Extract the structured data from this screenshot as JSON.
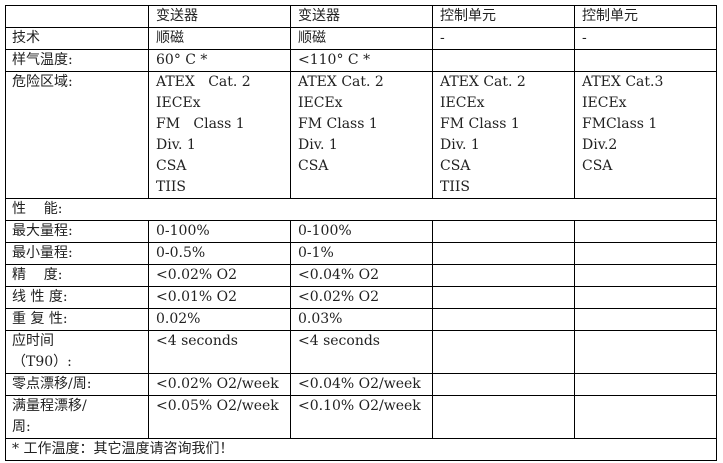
{
  "header": [
    "",
    "变送器",
    "变送器",
    "控制单元",
    "控制单元"
  ],
  "rows": [
    {
      "label": "技术",
      "cells": [
        "顺磁",
        "顺磁",
        "-",
        "-"
      ]
    },
    {
      "label": "样气温度:",
      "cells": [
        "60° C *",
        "<110° C *",
        "",
        ""
      ]
    },
    {
      "label": "危险区域:",
      "cells": [
        "ATEX   Cat. 2\nIECEx\nFM   Class 1\nDiv. 1\nCSA\nTIIS",
        "ATEX Cat. 2\nIECEx\nFM Class 1\nDiv. 1\nCSA",
        "ATEX Cat. 2\nIECEx\nFM Class 1\nDiv. 1\nCSA\nTIIS",
        "ATEX Cat.3\nIECEx\nFMClass 1\nDiv.2\nCSA"
      ]
    },
    {
      "section": "性    能:"
    },
    {
      "label": "最大量程:",
      "cells": [
        "0-100%",
        "0-100%",
        "",
        ""
      ]
    },
    {
      "label": "最小量程:",
      "cells": [
        "0-0.5%",
        "0-1%",
        "",
        ""
      ]
    },
    {
      "label": "精    度:",
      "cells": [
        "<0.02% O2",
        "<0.04% O2",
        "",
        ""
      ]
    },
    {
      "label": "线 性 度:",
      "cells": [
        "<0.01% O2",
        "<0.02% O2",
        "",
        ""
      ]
    },
    {
      "label": "重 复 性:",
      "cells": [
        "0.02%",
        "0.03%",
        "",
        ""
      ]
    },
    {
      "label": "应时间\n（T90）:",
      "cells": [
        "<4 seconds",
        "<4 seconds",
        "",
        ""
      ]
    },
    {
      "label": "零点漂移/周:",
      "cells": [
        "<0.02% O2/week",
        "<0.04% O2/week",
        "",
        ""
      ]
    },
    {
      "label": "满量程漂移/\n周:",
      "cells": [
        "<0.05% O2/week",
        "<0.10% O2/week",
        "",
        ""
      ]
    }
  ],
  "footnote": "* 工作温度：其它温度请咨询我们！"
}
